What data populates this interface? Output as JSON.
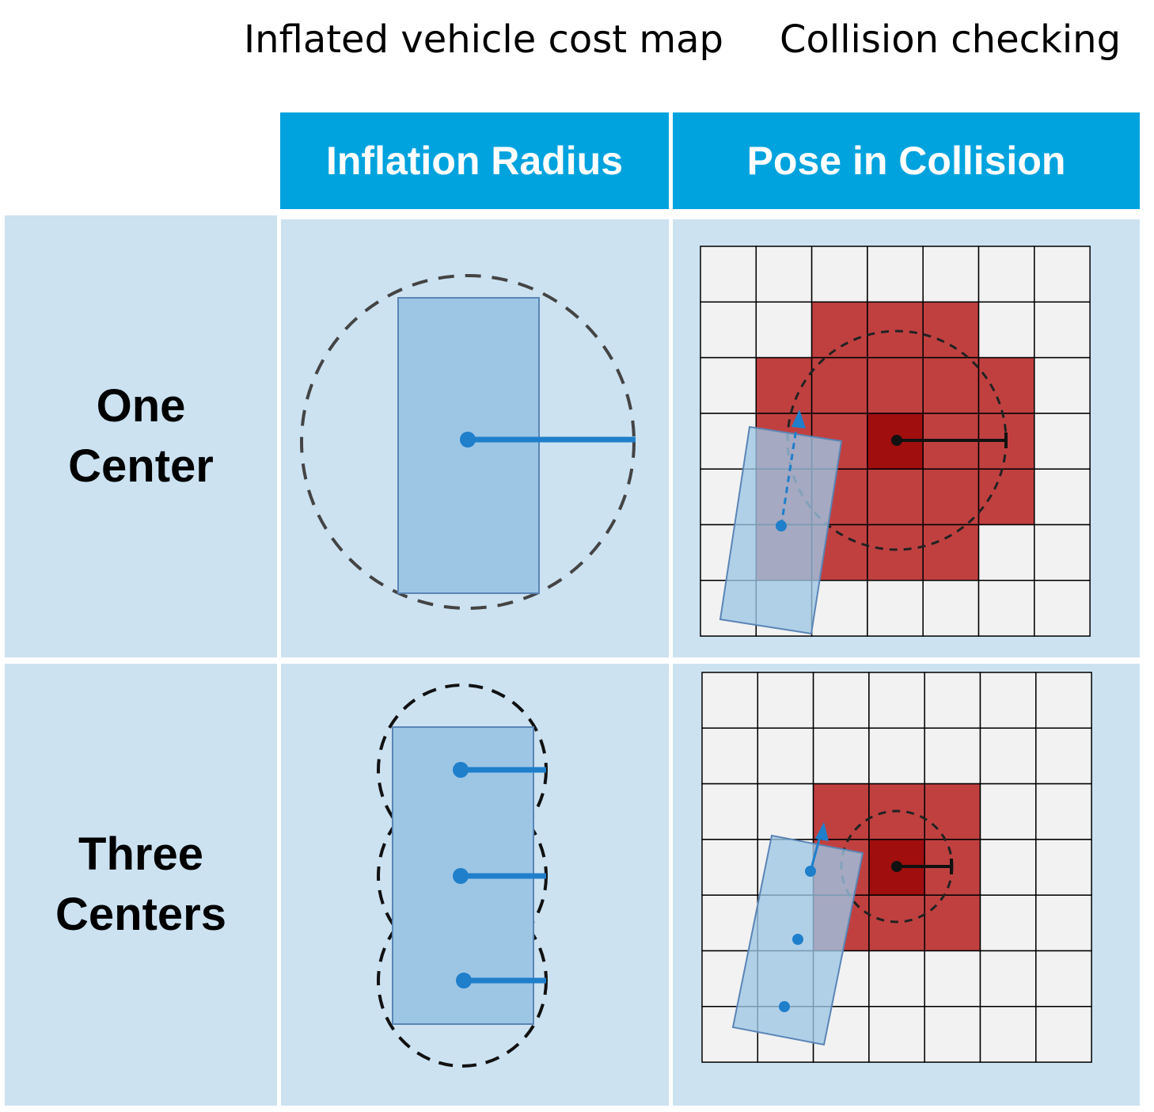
{
  "titles": {
    "left": "Inflated vehicle cost map",
    "right": "Collision checking"
  },
  "columns": [
    {
      "label": "Inflation Radius"
    },
    {
      "label": "Pose in Collision"
    }
  ],
  "rows": [
    {
      "line1": "One",
      "line2": "Center"
    },
    {
      "line1": "Three",
      "line2": "Centers"
    }
  ],
  "colors": {
    "header_bg": "#00a3de",
    "cell_bg": "#cce2f1",
    "vehicle_fill": "#9dc6e5",
    "vehicle_dot": "#1f7fcb",
    "inflated_cell": "#c04040",
    "obstacle_cell": "#a00e0e",
    "free_cell": "#f2f2f2"
  },
  "grids": {
    "one_center": {
      "size": 7,
      "inflated": [
        [
          2,
          1
        ],
        [
          3,
          1
        ],
        [
          4,
          1
        ],
        [
          1,
          2
        ],
        [
          2,
          2
        ],
        [
          3,
          2
        ],
        [
          4,
          2
        ],
        [
          5,
          2
        ],
        [
          1,
          3
        ],
        [
          2,
          3
        ],
        [
          4,
          3
        ],
        [
          5,
          3
        ],
        [
          1,
          4
        ],
        [
          2,
          4
        ],
        [
          3,
          4
        ],
        [
          4,
          4
        ],
        [
          5,
          4
        ],
        [
          1,
          5
        ],
        [
          2,
          5
        ],
        [
          3,
          5
        ],
        [
          4,
          5
        ]
      ],
      "obstacle": [
        [
          3,
          3
        ]
      ]
    },
    "three_centers": {
      "size": 7,
      "inflated": [
        [
          2,
          2
        ],
        [
          3,
          2
        ],
        [
          4,
          2
        ],
        [
          2,
          3
        ],
        [
          4,
          3
        ],
        [
          2,
          4
        ],
        [
          3,
          4
        ],
        [
          4,
          4
        ]
      ],
      "obstacle": [
        [
          3,
          3
        ]
      ]
    }
  }
}
